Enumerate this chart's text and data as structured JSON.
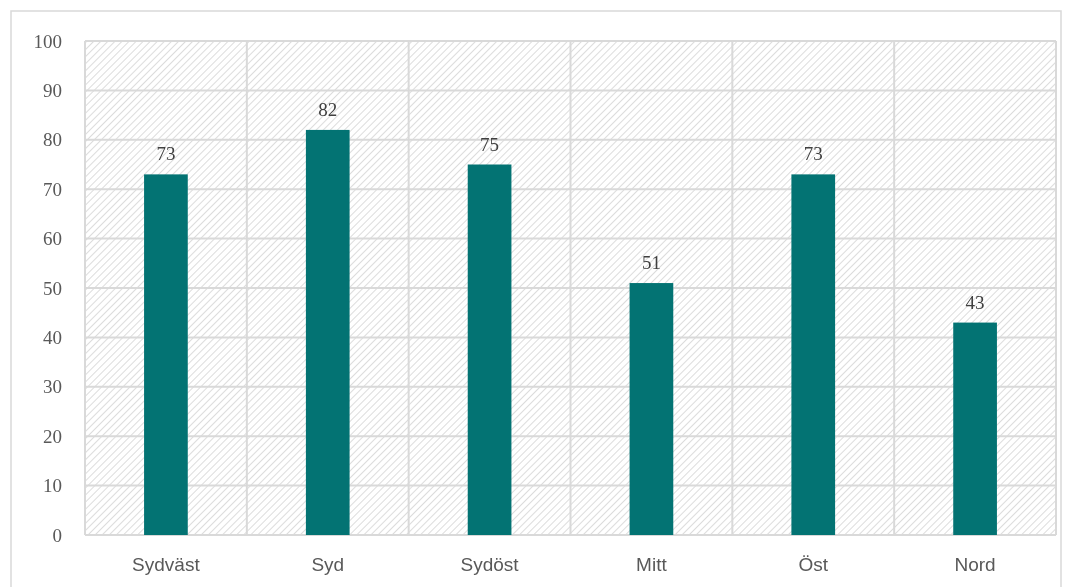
{
  "chart_data": {
    "type": "bar",
    "categories": [
      "Sydväst",
      "Syd",
      "Sydöst",
      "Mitt",
      "Öst",
      "Nord"
    ],
    "values": [
      73,
      82,
      75,
      51,
      73,
      43
    ],
    "color": "#037373",
    "ylim": [
      0,
      100
    ],
    "yticks": [
      0,
      10,
      20,
      30,
      40,
      50,
      60,
      70,
      80,
      90,
      100
    ],
    "grid": true,
    "data_labels": true
  }
}
